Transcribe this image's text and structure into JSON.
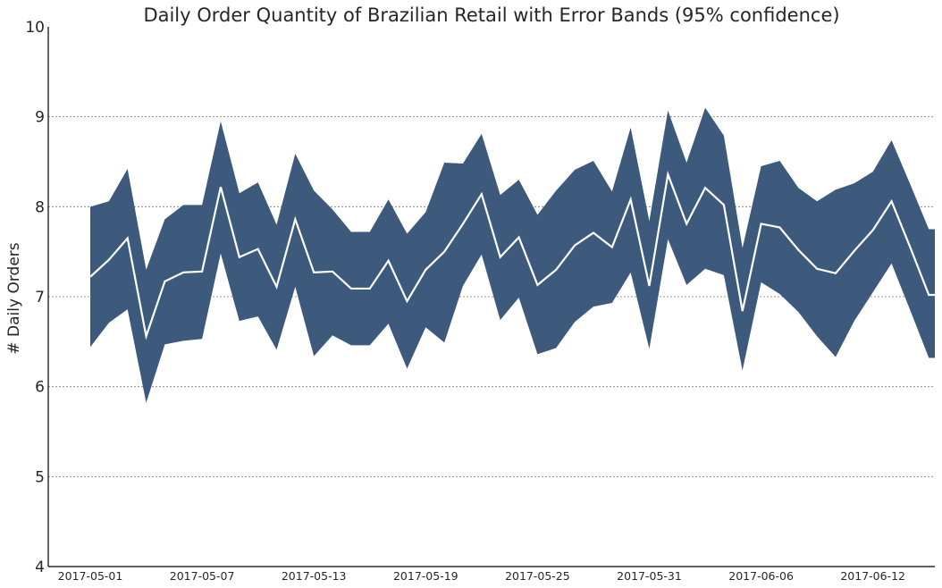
{
  "chart_data": {
    "type": "area",
    "title": "Daily Order Quantity of Brazilian Retail with Error Bands (95% confidence)",
    "xlabel": "",
    "ylabel": "# Daily Orders",
    "ylim": [
      4,
      10
    ],
    "yticks": [
      4,
      5,
      6,
      7,
      8,
      9,
      10
    ],
    "xtick_labels": [
      "2017-05-01",
      "2017-05-07",
      "2017-05-13",
      "2017-05-19",
      "2017-05-25",
      "2017-05-31",
      "2017-06-06",
      "2017-06-12"
    ],
    "grid": "horizontal dashed",
    "x": [
      "2017-05-01",
      "2017-05-02",
      "2017-05-03",
      "2017-05-04",
      "2017-05-05",
      "2017-05-06",
      "2017-05-07",
      "2017-05-08",
      "2017-05-09",
      "2017-05-10",
      "2017-05-11",
      "2017-05-12",
      "2017-05-13",
      "2017-05-14",
      "2017-05-15",
      "2017-05-16",
      "2017-05-17",
      "2017-05-18",
      "2017-05-19",
      "2017-05-20",
      "2017-05-21",
      "2017-05-22",
      "2017-05-23",
      "2017-05-24",
      "2017-05-25",
      "2017-05-26",
      "2017-05-27",
      "2017-05-28",
      "2017-05-29",
      "2017-05-30",
      "2017-05-31",
      "2017-06-01",
      "2017-06-02",
      "2017-06-03",
      "2017-06-04",
      "2017-06-05",
      "2017-06-06",
      "2017-06-07",
      "2017-06-08",
      "2017-06-09",
      "2017-06-10",
      "2017-06-11",
      "2017-06-12",
      "2017-06-13",
      "2017-06-14",
      "2017-06-15"
    ],
    "mean": [
      7.22,
      7.41,
      7.65,
      6.56,
      7.17,
      7.27,
      7.28,
      8.22,
      7.44,
      7.53,
      7.11,
      7.86,
      7.27,
      7.28,
      7.09,
      7.09,
      7.4,
      6.95,
      7.3,
      7.5,
      7.81,
      8.14,
      7.44,
      7.66,
      7.13,
      7.3,
      7.57,
      7.71,
      7.55,
      8.08,
      7.12,
      8.36,
      7.81,
      8.21,
      8.02,
      6.84,
      7.81,
      7.77,
      7.52,
      7.31,
      7.26,
      7.51,
      7.74,
      8.06,
      7.55,
      7.02
    ],
    "upper": [
      8.0,
      8.06,
      8.42,
      7.3,
      7.86,
      8.02,
      8.02,
      8.95,
      8.15,
      8.27,
      7.8,
      8.59,
      8.18,
      7.97,
      7.72,
      7.72,
      8.08,
      7.7,
      7.94,
      8.49,
      8.48,
      8.81,
      8.13,
      8.3,
      7.91,
      8.18,
      8.41,
      8.51,
      8.17,
      8.88,
      7.84,
      9.07,
      8.49,
      9.1,
      8.79,
      7.54,
      8.45,
      8.51,
      8.21,
      8.06,
      8.19,
      8.26,
      8.39,
      8.74,
      8.25,
      7.75
    ],
    "lower": [
      6.44,
      6.71,
      6.86,
      5.82,
      6.47,
      6.51,
      6.53,
      7.48,
      6.73,
      6.78,
      6.41,
      7.11,
      6.34,
      6.57,
      6.46,
      6.46,
      6.7,
      6.2,
      6.66,
      6.49,
      7.12,
      7.47,
      6.74,
      6.99,
      6.36,
      6.43,
      6.72,
      6.89,
      6.93,
      7.27,
      6.42,
      7.64,
      7.13,
      7.31,
      7.24,
      6.18,
      7.16,
      7.03,
      6.83,
      6.56,
      6.33,
      6.73,
      7.05,
      7.37,
      6.85,
      6.32
    ],
    "colors": {
      "band": "#3d5a7c",
      "line": "#ffffff",
      "grid": "#7a7a7a",
      "axis": "#000000"
    }
  }
}
